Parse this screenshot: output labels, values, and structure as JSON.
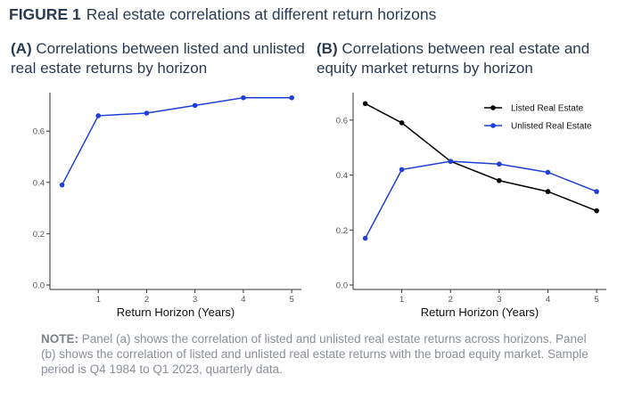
{
  "figure": {
    "label": "FIGURE 1",
    "title": "Real estate correlations at different return horizons"
  },
  "note": {
    "label": "NOTE:",
    "text": "Panel (a) shows the correlation of listed and unlisted real estate returns across horizons. Panel (b) shows the correlation of listed and unlisted real estate returns with the broad equity market. Sample period is Q4 1984 to Q1 2023, quarterly data."
  },
  "colors": {
    "listed": "#000000",
    "unlisted": "#1f3fd6",
    "axis": "#333333"
  },
  "chart_data": [
    {
      "type": "line",
      "panel_label": "(A)",
      "title": "Correlations between listed and unlisted real estate returns by horizon",
      "xlabel": "Return Horizon (Years)",
      "ylabel": "",
      "xlim": [
        0,
        5.2
      ],
      "ylim": [
        0,
        0.75
      ],
      "xticks": [
        1,
        2,
        3,
        4,
        5
      ],
      "yticks": [
        0.0,
        0.2,
        0.4,
        0.6
      ],
      "ytick_labels": [
        "0.0",
        "0.2",
        "0.4",
        "0.6"
      ],
      "grid": false,
      "legend": "none",
      "series": [
        {
          "color": "#1f3fd6",
          "x": [
            0.25,
            1,
            2,
            3,
            4,
            5
          ],
          "y": [
            0.39,
            0.66,
            0.67,
            0.7,
            0.73,
            0.73
          ]
        }
      ]
    },
    {
      "type": "line",
      "panel_label": "(B)",
      "title": "Correlations between real estate and equity market returns by horizon",
      "xlabel": "Return Horizon (Years)",
      "ylabel": "",
      "xlim": [
        0,
        5.2
      ],
      "ylim": [
        0,
        0.7
      ],
      "xticks": [
        1,
        2,
        3,
        4,
        5
      ],
      "yticks": [
        0.0,
        0.2,
        0.4,
        0.6
      ],
      "ytick_labels": [
        "0.0",
        "0.2",
        "0.4",
        "0.6"
      ],
      "grid": false,
      "legend": "top-right",
      "series": [
        {
          "name": "Listed Real Estate",
          "color": "#000000",
          "x": [
            0.25,
            1,
            2,
            3,
            4,
            5
          ],
          "y": [
            0.66,
            0.59,
            0.45,
            0.38,
            0.34,
            0.27
          ]
        },
        {
          "name": "Unlisted Real Estate",
          "color": "#1f3fd6",
          "x": [
            0.25,
            1,
            2,
            3,
            4,
            5
          ],
          "y": [
            0.17,
            0.42,
            0.45,
            0.44,
            0.41,
            0.34
          ]
        }
      ]
    }
  ]
}
